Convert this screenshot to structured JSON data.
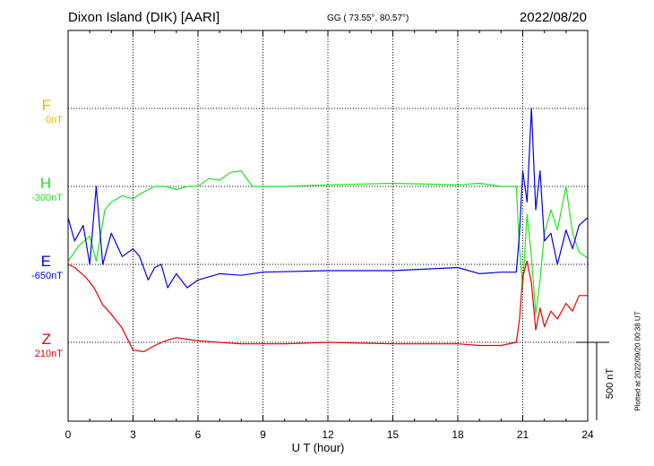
{
  "header": {
    "title": "Dixon Island (DIK)  [AARI]",
    "coords": "GG ( 73.55°,  80.57°)",
    "date": "2022/08/20"
  },
  "components": [
    {
      "name": "F",
      "baseline": "0nT",
      "color": "#f5b400"
    },
    {
      "name": "H",
      "baseline": "-300nT",
      "color": "#1fe61f"
    },
    {
      "name": "E",
      "baseline": "-650nT",
      "color": "#0000e6"
    },
    {
      "name": "Z",
      "baseline": "210nT",
      "color": "#e60000"
    }
  ],
  "footer": {
    "xlabel": "U T (hour)",
    "scale_label": "500 nT",
    "plotted": "Plotted at 2022/09/20 00:38 UT"
  },
  "chart_data": {
    "type": "line",
    "title": "Dixon Island (DIK)  [AARI]",
    "xlabel": "U T (hour)",
    "xlim": [
      0,
      24
    ],
    "xticks": [
      "0",
      "3",
      "6",
      "9",
      "12",
      "15",
      "18",
      "21",
      "24"
    ],
    "grid": true,
    "scale_bar_nT": 500,
    "series": [
      {
        "name": "H",
        "color": "#1fe61f",
        "baseline_nT": -300,
        "x": [
          0,
          0.5,
          1,
          1.3,
          1.7,
          2,
          2.5,
          3,
          3.3,
          4,
          4.5,
          5,
          5.5,
          6,
          6.5,
          7,
          7.5,
          8,
          8.5,
          9,
          10,
          12,
          15,
          18,
          19,
          20,
          20.7,
          20.85,
          21,
          21.2,
          21.4,
          21.6,
          21.8,
          22,
          22.3,
          22.6,
          23,
          23.3,
          23.6,
          24
        ],
        "y": [
          -480,
          -380,
          -320,
          -480,
          -150,
          -100,
          -60,
          -80,
          -50,
          0,
          0,
          -20,
          0,
          0,
          50,
          40,
          90,
          100,
          0,
          0,
          0,
          10,
          20,
          10,
          20,
          0,
          0,
          -400,
          -650,
          -180,
          -450,
          -820,
          -600,
          -300,
          -150,
          -280,
          0,
          -300,
          -420,
          -460
        ]
      },
      {
        "name": "E",
        "color": "#0000e6",
        "baseline_nT": -650,
        "x": [
          0,
          0.3,
          0.7,
          1,
          1.3,
          1.6,
          2,
          2.5,
          3,
          3.3,
          3.7,
          4,
          4.3,
          4.6,
          5,
          5.5,
          6,
          6.5,
          7,
          8,
          9,
          12,
          15,
          18,
          19,
          20,
          20.7,
          20.85,
          21,
          21.2,
          21.4,
          21.6,
          21.8,
          22,
          22.3,
          22.6,
          23,
          23.3,
          23.6,
          24
        ],
        "y": [
          300,
          150,
          250,
          0,
          500,
          0,
          200,
          50,
          100,
          50,
          -100,
          -20,
          0,
          -150,
          -60,
          -150,
          -100,
          -80,
          -60,
          -70,
          -50,
          -40,
          -40,
          -20,
          -60,
          -50,
          -50,
          200,
          600,
          400,
          1000,
          350,
          600,
          150,
          200,
          0,
          220,
          100,
          250,
          300
        ]
      },
      {
        "name": "Z",
        "color": "#e60000",
        "baseline_nT": 210,
        "x": [
          0,
          0.3,
          0.8,
          1.2,
          1.6,
          2,
          2.5,
          3,
          3.5,
          4,
          4.5,
          5,
          5.5,
          6,
          7,
          8,
          9,
          10,
          12,
          15,
          18,
          19,
          20,
          20.7,
          20.85,
          21,
          21.2,
          21.4,
          21.6,
          21.8,
          22,
          22.3,
          22.6,
          23,
          23.3,
          23.6,
          24
        ],
        "y": [
          500,
          480,
          420,
          350,
          240,
          180,
          90,
          -50,
          -60,
          -20,
          10,
          30,
          20,
          10,
          0,
          -10,
          -10,
          -10,
          0,
          -10,
          -10,
          -20,
          -20,
          0,
          150,
          420,
          520,
          380,
          80,
          220,
          100,
          200,
          150,
          250,
          200,
          300,
          300
        ]
      }
    ]
  }
}
